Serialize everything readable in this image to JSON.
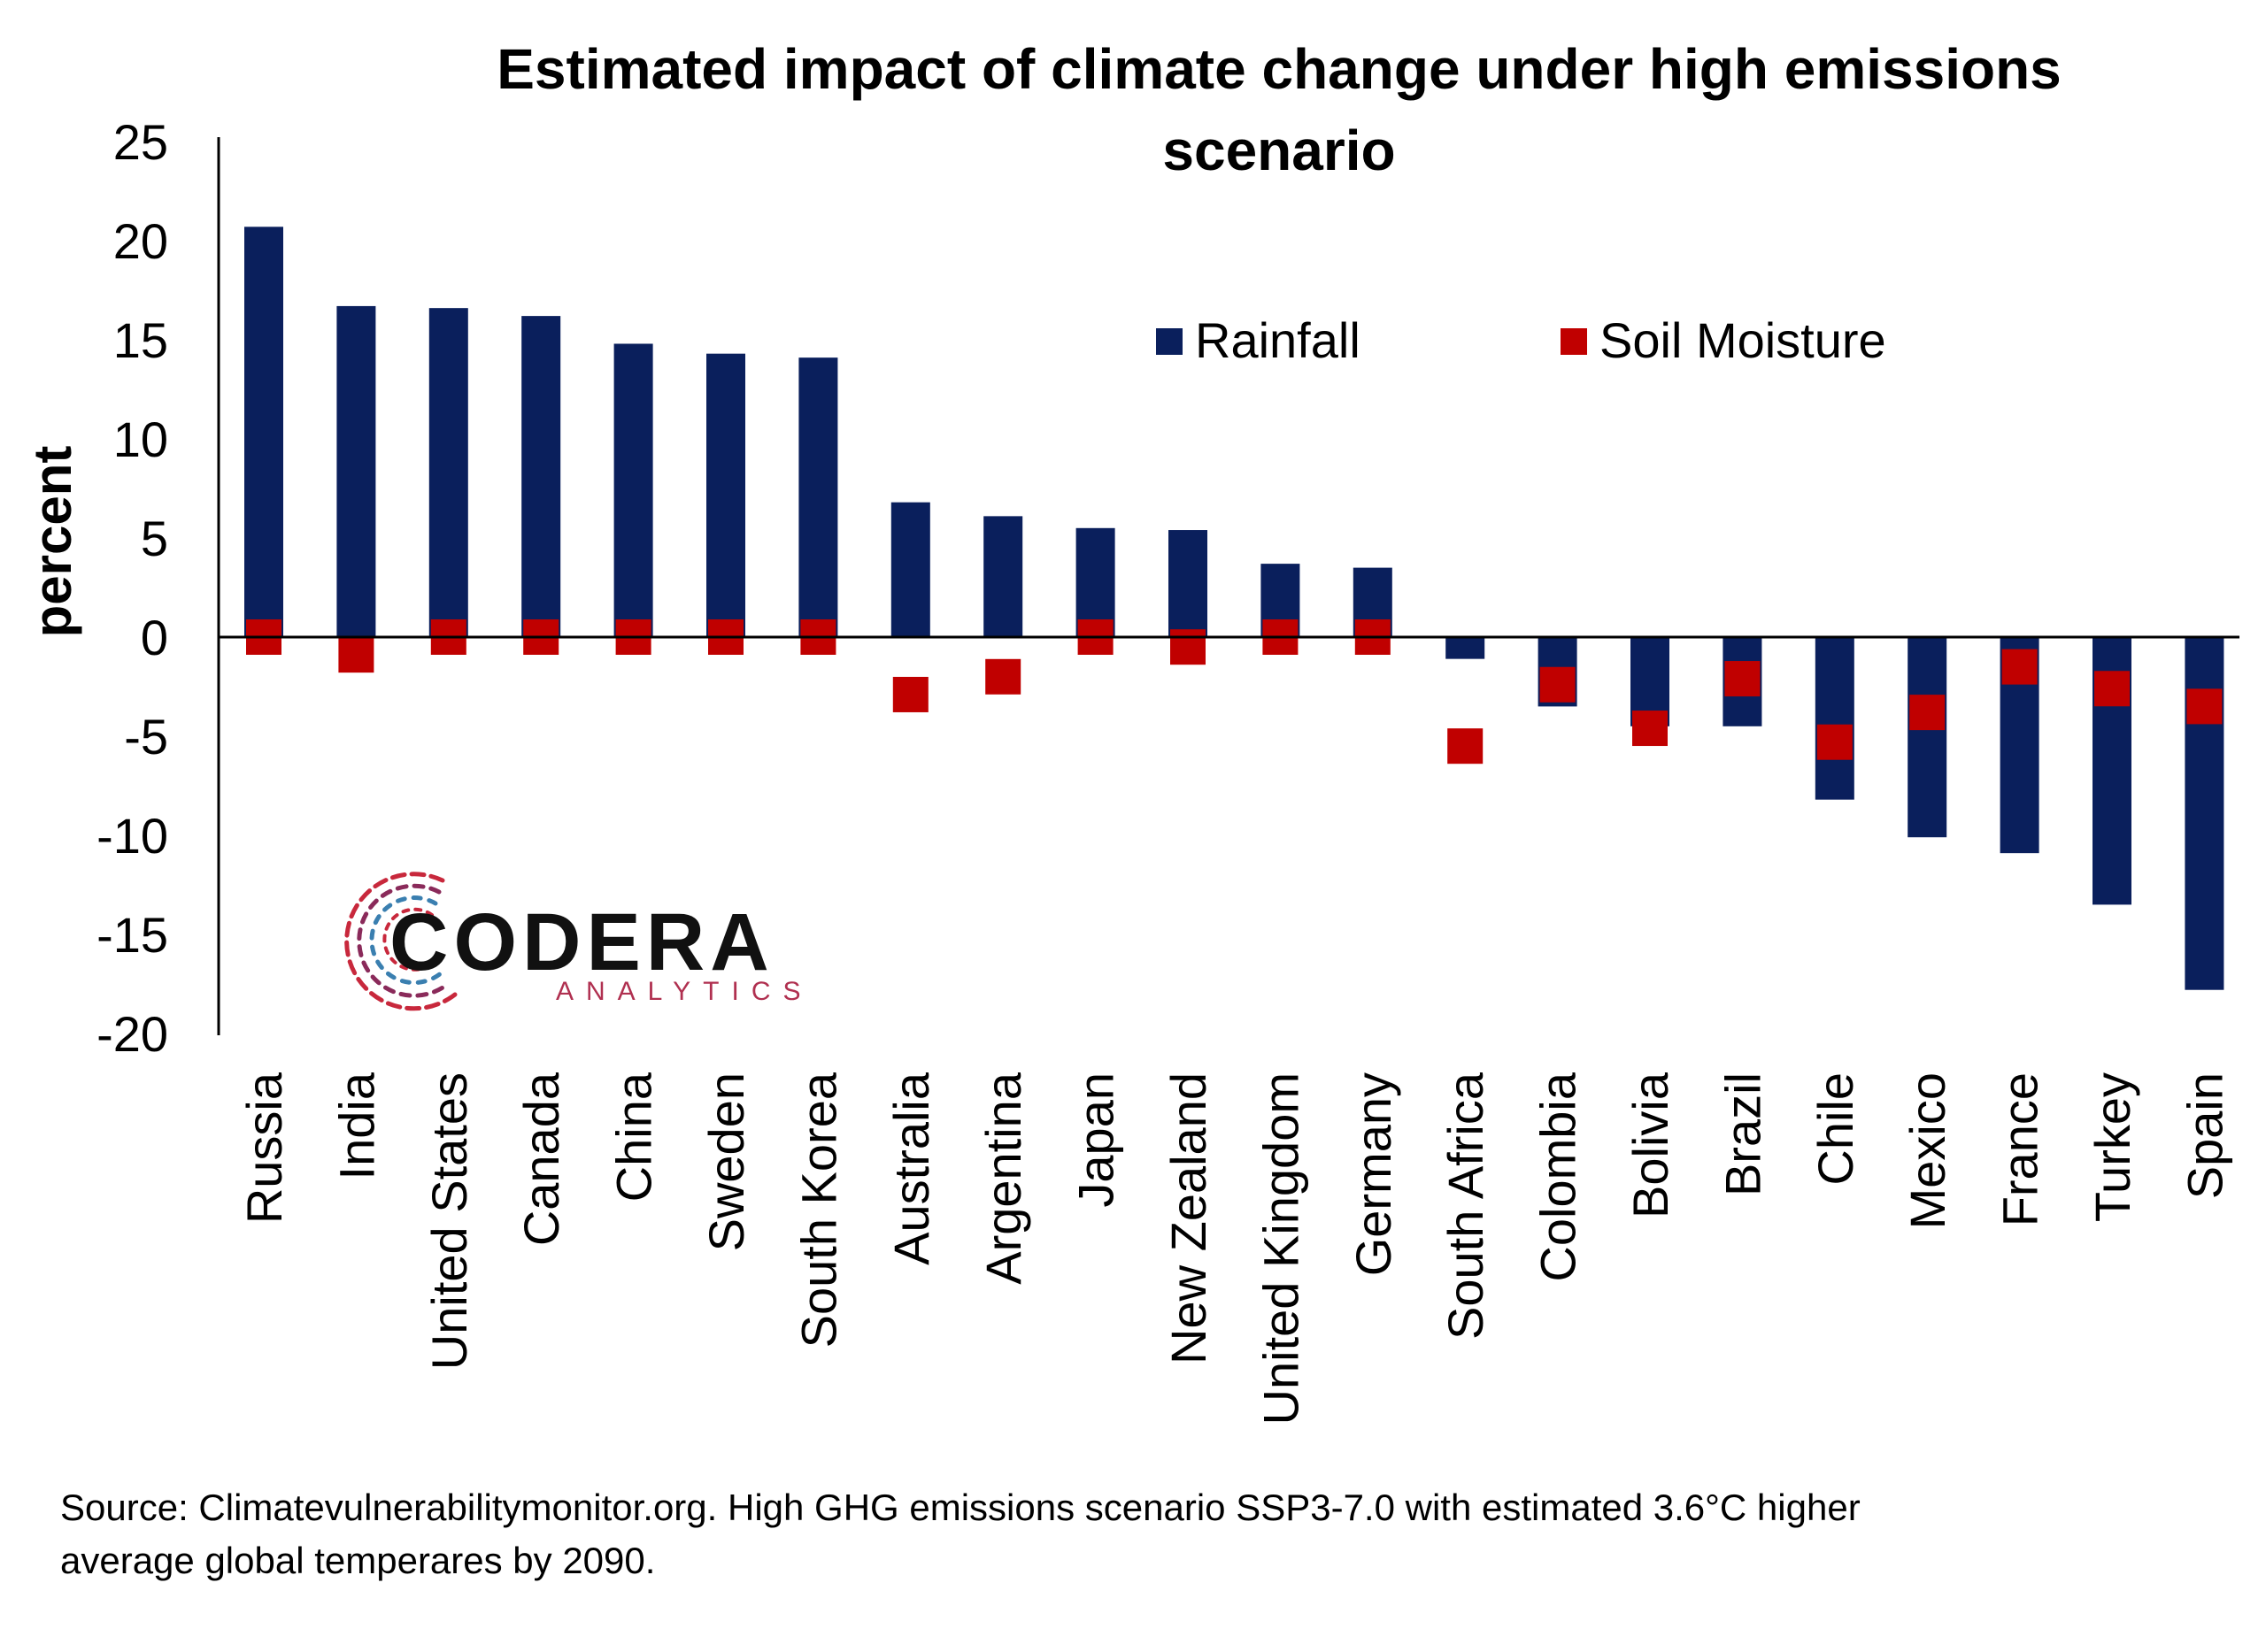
{
  "chart_data": {
    "type": "bar",
    "title": "Estimated impact of climate change under high emissions scenario",
    "title_lines": [
      "Estimated impact of climate change under high emissions",
      "scenario"
    ],
    "ylabel": "percent",
    "xlabel": "",
    "ylim": [
      -20,
      25
    ],
    "yticks": [
      25,
      20,
      15,
      10,
      5,
      0,
      -5,
      -10,
      -15,
      -20
    ],
    "grid": false,
    "legend_placement": "top-center",
    "categories": [
      "Russia",
      "India",
      "United States",
      "Canada",
      "China",
      "Sweden",
      "South Korea",
      "Australia",
      "Argentina",
      "Japan",
      "New Zealand",
      "United Kingdom",
      "Germany",
      "South Africa",
      "Colombia",
      "Bolivia",
      "Brazil",
      "Chile",
      "Mexico",
      "France",
      "Turkey",
      "Spain"
    ],
    "series": [
      {
        "name": "Rainfall",
        "mark": "bar",
        "color": "#0a1f5c",
        "values": [
          20.7,
          16.7,
          16.6,
          16.2,
          14.8,
          14.3,
          14.1,
          6.8,
          6.1,
          5.5,
          5.4,
          3.7,
          3.5,
          -1.1,
          -3.5,
          -4.5,
          -4.5,
          -8.2,
          -10.1,
          -10.9,
          -13.5,
          -17.8
        ]
      },
      {
        "name": "Soil Moisture",
        "mark": "square",
        "color": "#c00000",
        "values": [
          0.0,
          -0.9,
          0.0,
          0.0,
          0.0,
          0.0,
          0.0,
          -2.9,
          -2.0,
          0.0,
          -0.5,
          0.0,
          0.0,
          -5.5,
          -2.4,
          -4.6,
          -2.1,
          -5.3,
          -3.8,
          -1.5,
          -2.6,
          -3.5
        ]
      }
    ]
  },
  "logo": {
    "word": "CODERA",
    "sub": "ANALYTICS"
  },
  "source": {
    "line1": "Source: Climatevulnerabilitymonitor.org. High GHG emissions scenario SSP3-7.0 with estimated 3.6°C higher",
    "line2": "average global temperares by 2090."
  }
}
